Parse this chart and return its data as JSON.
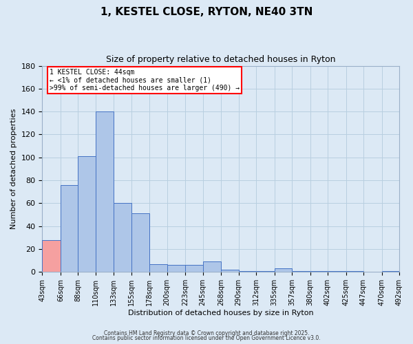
{
  "title": "1, KESTEL CLOSE, RYTON, NE40 3TN",
  "subtitle": "Size of property relative to detached houses in Ryton",
  "xlabel": "Distribution of detached houses by size in Ryton",
  "ylabel": "Number of detached properties",
  "bins": [
    "43sqm",
    "66sqm",
    "88sqm",
    "110sqm",
    "133sqm",
    "155sqm",
    "178sqm",
    "200sqm",
    "223sqm",
    "245sqm",
    "268sqm",
    "290sqm",
    "312sqm",
    "335sqm",
    "357sqm",
    "380sqm",
    "402sqm",
    "425sqm",
    "447sqm",
    "470sqm",
    "492sqm"
  ],
  "bin_edges": [
    43,
    66,
    88,
    110,
    133,
    155,
    178,
    200,
    223,
    245,
    268,
    290,
    312,
    335,
    357,
    380,
    402,
    425,
    447,
    470,
    492
  ],
  "values": [
    28,
    76,
    101,
    140,
    60,
    51,
    7,
    6,
    6,
    9,
    2,
    1,
    1,
    3,
    1,
    1,
    1,
    1,
    0,
    1
  ],
  "bar_color_default": "#aec6e8",
  "bar_color_highlight": "#f5a0a0",
  "bar_edge_color": "#4472c4",
  "highlight_index": 0,
  "ylim": [
    0,
    180
  ],
  "yticks": [
    0,
    20,
    40,
    60,
    80,
    100,
    120,
    140,
    160,
    180
  ],
  "annotation_title": "1 KESTEL CLOSE: 44sqm",
  "annotation_line1": "← <1% of detached houses are smaller (1)",
  "annotation_line2": ">99% of semi-detached houses are larger (490) →",
  "annotation_box_color": "#ff0000",
  "background_color": "#dce9f5",
  "grid_color": "#b8cfe0",
  "footer1": "Contains HM Land Registry data © Crown copyright and database right 2025.",
  "footer2": "Contains public sector information licensed under the Open Government Licence v3.0."
}
